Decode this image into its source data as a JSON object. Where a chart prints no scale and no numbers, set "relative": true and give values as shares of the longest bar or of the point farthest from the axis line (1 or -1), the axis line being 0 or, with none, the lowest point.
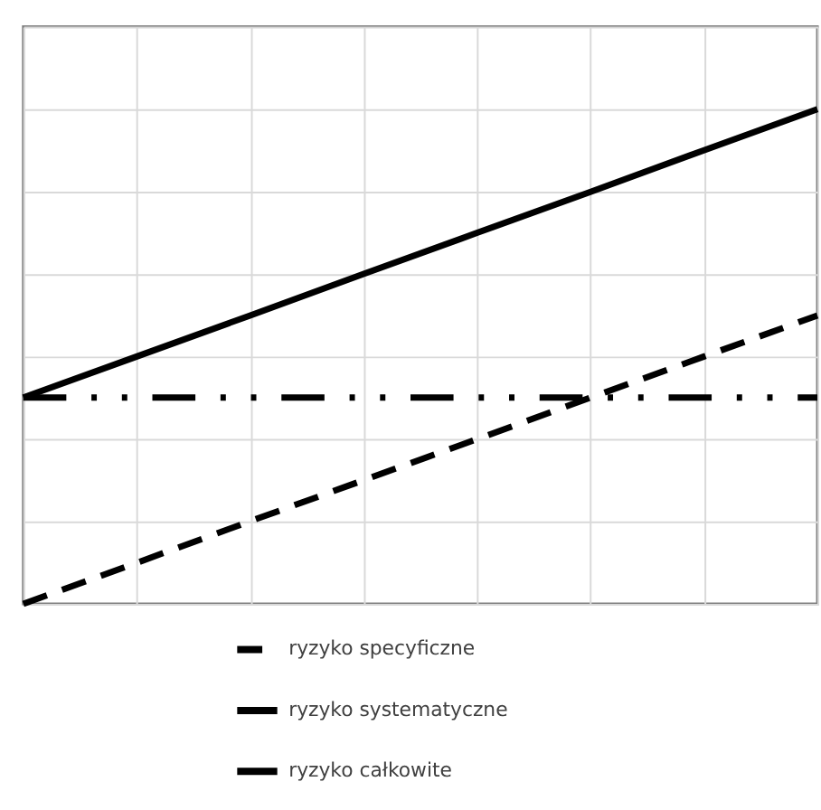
{
  "chart_data": {
    "type": "line",
    "relative": true,
    "grid": true,
    "legend": "bottom",
    "tick_labels": false,
    "categories": [
      null,
      null,
      null,
      null,
      null,
      null,
      null,
      null
    ],
    "series": [
      {
        "name": "ryzyko specyficzne",
        "color": "#000000",
        "line_style": "dashed",
        "values": [
          0,
          0.083,
          0.167,
          0.25,
          0.333,
          0.417,
          0.5,
          0.583
        ]
      },
      {
        "name": "ryzyko systematyczne",
        "color": "#000000",
        "line_style": "dashdot",
        "values": [
          0.417,
          0.417,
          0.417,
          0.417,
          0.417,
          0.417,
          0.417,
          0.417
        ]
      },
      {
        "name": "ryzyko całkowite",
        "color": "#000000",
        "line_style": "solid",
        "values": [
          0.417,
          0.5,
          0.583,
          0.667,
          0.75,
          0.833,
          0.917,
          1
        ]
      }
    ]
  }
}
